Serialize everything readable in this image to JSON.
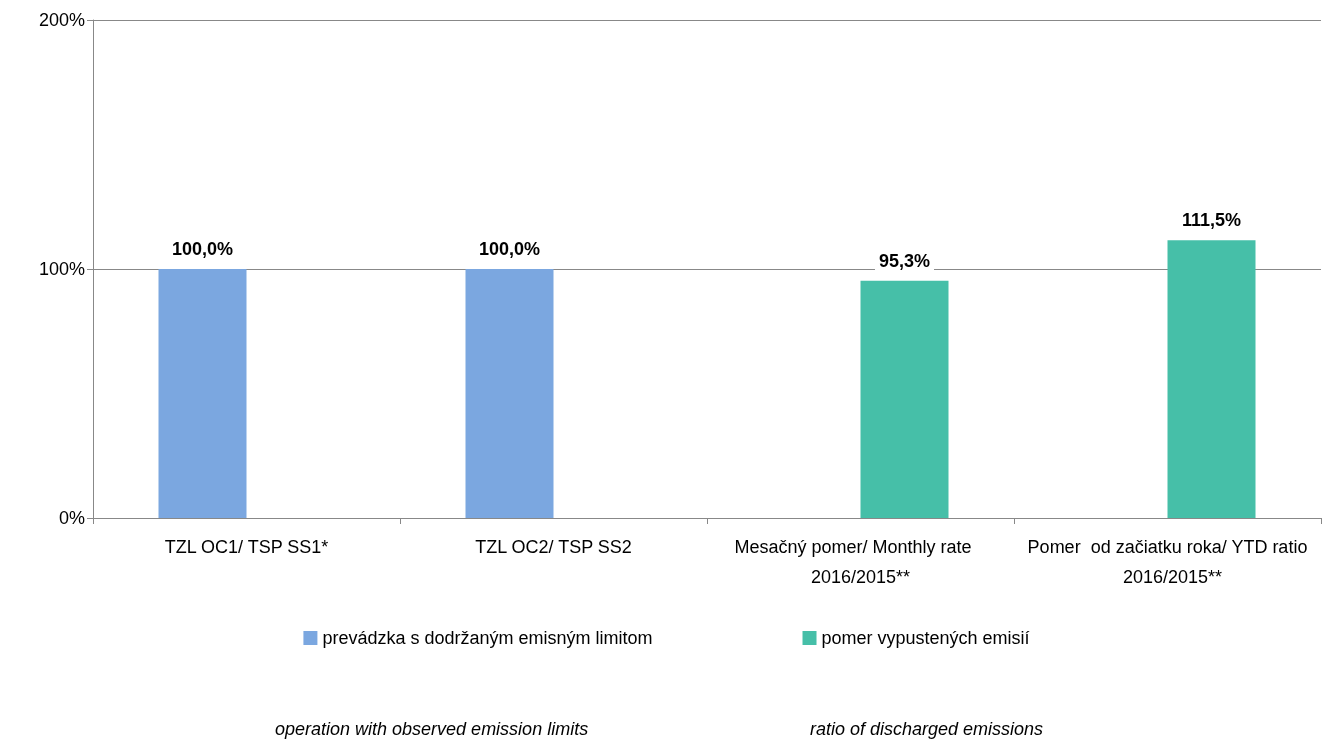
{
  "chart_data": {
    "type": "bar",
    "categories": [
      "TZL OC1/ TSP SS1*",
      "TZL OC2/ TSP SS2",
      "Mesačný pomer/ Monthly rate   2016/2015**",
      "Pomer  od začiatku roka/ YTD ratio  2016/2015**"
    ],
    "series": [
      {
        "name": "prevádzka s dodržaným emisným limitom",
        "color": "#7ba7e0",
        "values": [
          100,
          100,
          null,
          null
        ],
        "value_labels": [
          "100,0%",
          "100,0%",
          null,
          null
        ]
      },
      {
        "name": "pomer vypustených emisií",
        "color": "#46bfa8",
        "values": [
          null,
          null,
          95.3,
          111.5
        ],
        "value_labels": [
          null,
          null,
          "95,3%",
          "111,5%"
        ]
      }
    ],
    "ylim": [
      0,
      200
    ],
    "yticks": [
      {
        "value": 0,
        "label": "0%"
      },
      {
        "value": 100,
        "label": "100%"
      },
      {
        "value": 200,
        "label": "200%"
      }
    ],
    "grid": "y",
    "legend": "bottom",
    "annotations": [
      "operation with observed emission limits",
      "ratio of discharged emissions"
    ]
  }
}
